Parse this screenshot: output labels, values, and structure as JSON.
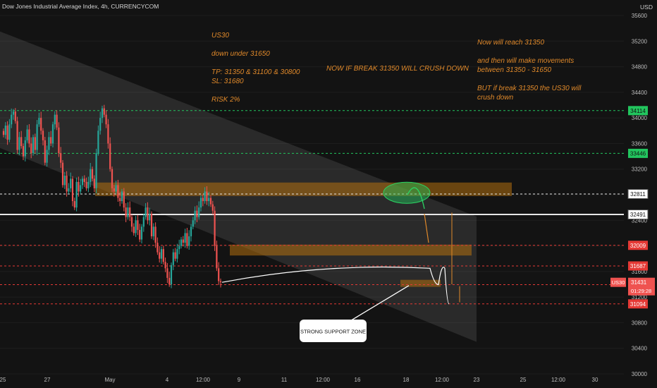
{
  "header": {
    "title": "Dow Jones Industrial Average Index, 4h, CURRENCYCOM",
    "currency": "USD"
  },
  "notes": {
    "left": "US30\n\ndown under 31650\n\nTP: 31350 & 31100  & 30800\nSL: 31680\n\nRISK 2%",
    "center": "NOW IF BREAK 31350 WILL CRUSH DOWN",
    "right": "Now will reach 31350\n\nand then will make movements\nbetween 31350 - 31650\n\nBUT if break 31350 the US30 will\ncrush down",
    "callout": "STRONG SUPPORT ZONE"
  },
  "colors": {
    "up": "#26a69a",
    "down": "#ef5350",
    "zone": "#b3700f",
    "level_green": "#22c55e",
    "level_red": "#e53935",
    "annotation": "#e0892a"
  },
  "chart_data": {
    "type": "candlestick",
    "symbol": "US30",
    "timeframe": "4h",
    "ylim": [
      30000,
      35600
    ],
    "y_ticks": [
      30000,
      30400,
      30800,
      31200,
      31600,
      32000,
      32400,
      32800,
      33200,
      33600,
      34000,
      34400,
      34800,
      35200,
      35600
    ],
    "x_ticks": [
      "25",
      "27",
      "May",
      "4",
      "12:00",
      "9",
      "11",
      "12:00",
      "16",
      "18",
      "12:00",
      "23",
      "25",
      "12:00",
      "30"
    ],
    "levels": [
      {
        "value": 34114,
        "color": "green",
        "style": "dashed",
        "badge": "34114"
      },
      {
        "value": 33446,
        "color": "green",
        "style": "dashed",
        "badge": "33446"
      },
      {
        "value": 32811,
        "color": "white",
        "style": "dashed",
        "badge": "32811"
      },
      {
        "value": 32491,
        "color": "white",
        "style": "solid",
        "badge": "32491"
      },
      {
        "value": 32009,
        "color": "red",
        "style": "dashed",
        "badge": "32009"
      },
      {
        "value": 31687,
        "color": "red",
        "style": "dashed",
        "badge": "31687"
      },
      {
        "value": 31394,
        "color": "red",
        "style": "dashed",
        "badge": "31394"
      },
      {
        "value": 31094,
        "color": "red",
        "style": "dashed",
        "badge": "31094"
      }
    ],
    "last_price": {
      "symbol": "US30",
      "value": 31431,
      "countdown": "01:29:28"
    },
    "zones": [
      {
        "from": 32780,
        "to": 32990
      },
      {
        "from": 31850,
        "to": 32020
      },
      {
        "from": 31360,
        "to": 31470
      }
    ],
    "channel": {
      "upper": [
        35350,
        32460
      ],
      "lower": [
        33530,
        30500
      ]
    },
    "closes": [
      33735,
      33880,
      33660,
      33900,
      34050,
      34100,
      33950,
      33500,
      33700,
      33560,
      33400,
      33650,
      33820,
      33600,
      33450,
      33700,
      33500,
      33900,
      34000,
      33800,
      33650,
      33300,
      33500,
      33700,
      33600,
      33900,
      34050,
      33850,
      33450,
      33300,
      32950,
      33100,
      32850,
      32900,
      33050,
      32700,
      32600,
      33000,
      32850,
      32950,
      33050,
      33000,
      32900,
      33000,
      33200,
      33050,
      32900,
      33450,
      33800,
      34000,
      34150,
      34050,
      33900,
      33600,
      33200,
      32900,
      32850,
      32950,
      32750,
      32700,
      32850,
      32600,
      32450,
      32600,
      32450,
      32300,
      32200,
      32400,
      32250,
      32100,
      32300,
      32450,
      32600,
      32400,
      32500,
      32150,
      32300,
      32050,
      31900,
      31800,
      31950,
      31750,
      31650,
      31500,
      31400,
      31700,
      31900,
      31800,
      31950,
      32000,
      32100,
      32050,
      32200,
      32000,
      32150,
      32300,
      32400,
      32550,
      32450,
      32600,
      32750,
      32700,
      32850,
      32700,
      32750,
      32650,
      32550,
      32000,
      31650,
      31450,
      31431
    ],
    "projection": [
      31431,
      31650,
      31394,
      31650,
      31094
    ]
  }
}
